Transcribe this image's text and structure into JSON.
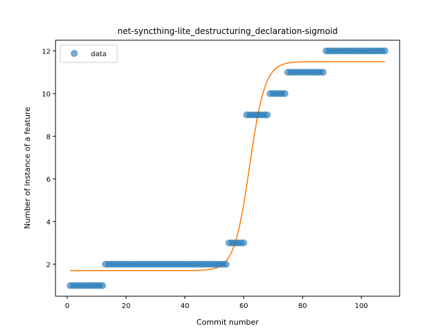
{
  "chart_data": {
    "type": "scatter",
    "title": "net-syncthing-lite_destructuring_declaration-sigmoid",
    "xlabel": "Commit number",
    "ylabel": "Number of instance of a feature",
    "xlim": [
      -4,
      113
    ],
    "ylim": [
      0.5,
      12.5
    ],
    "xticks": [
      0,
      20,
      40,
      60,
      80,
      100
    ],
    "yticks": [
      2,
      4,
      6,
      8,
      10,
      12
    ],
    "grid": false,
    "legend": {
      "placement": "top-left",
      "entries": [
        "data"
      ]
    },
    "series": [
      {
        "name": "data",
        "kind": "scatter",
        "color": "#1f77b4",
        "opacity": 0.6,
        "runs": [
          {
            "x_start": 1,
            "x_end": 12,
            "y": 1
          },
          {
            "x_start": 13,
            "x_end": 54,
            "y": 2
          },
          {
            "x_start": 55,
            "x_end": 60,
            "y": 3
          },
          {
            "x_start": 61,
            "x_end": 68,
            "y": 9
          },
          {
            "x_start": 69,
            "x_end": 74,
            "y": 10
          },
          {
            "x_start": 75,
            "x_end": 87,
            "y": 11
          },
          {
            "x_start": 88,
            "x_end": 108,
            "y": 12
          }
        ]
      },
      {
        "kind": "line",
        "color": "#ff7f0e",
        "model": "sigmoid",
        "params": {
          "low": 1.7,
          "high": 11.5,
          "midpoint": 62,
          "slope": 0.38
        },
        "x_range": [
          1,
          108
        ]
      }
    ]
  }
}
